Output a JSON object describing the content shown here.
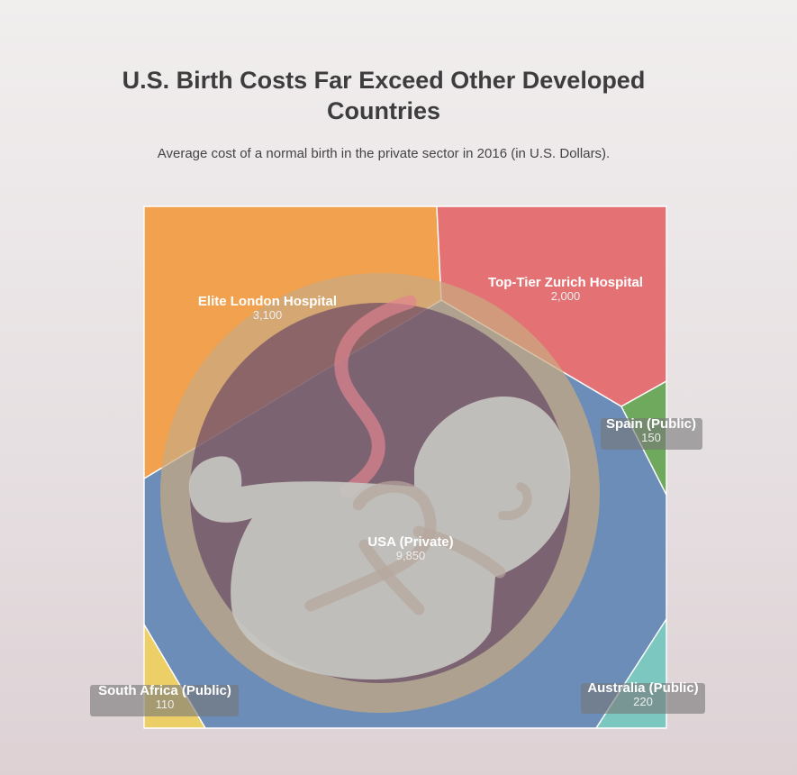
{
  "chart_data": {
    "type": "voronoi-treemap",
    "title": "U.S. Birth Costs Far Exceed Other Developed Countries",
    "subtitle": "Average cost of a normal birth in the private sector in 2016 (in U.S. Dollars).",
    "unit": "USD",
    "series": [
      {
        "name": "USA (Private)",
        "value": 9850,
        "color": "#6b8db8"
      },
      {
        "name": "Elite London Hospital",
        "value": 3100,
        "color": "#f2a24f"
      },
      {
        "name": "Top-Tier Zurich Hospital",
        "value": 2000,
        "color": "#e47275"
      },
      {
        "name": "Australia (Public)",
        "value": 220,
        "color": "#7cc8c0"
      },
      {
        "name": "Spain (Public)",
        "value": 150,
        "color": "#6fa95e"
      },
      {
        "name": "South Africa (Public)",
        "value": 110,
        "color": "#ecd067"
      }
    ]
  }
}
